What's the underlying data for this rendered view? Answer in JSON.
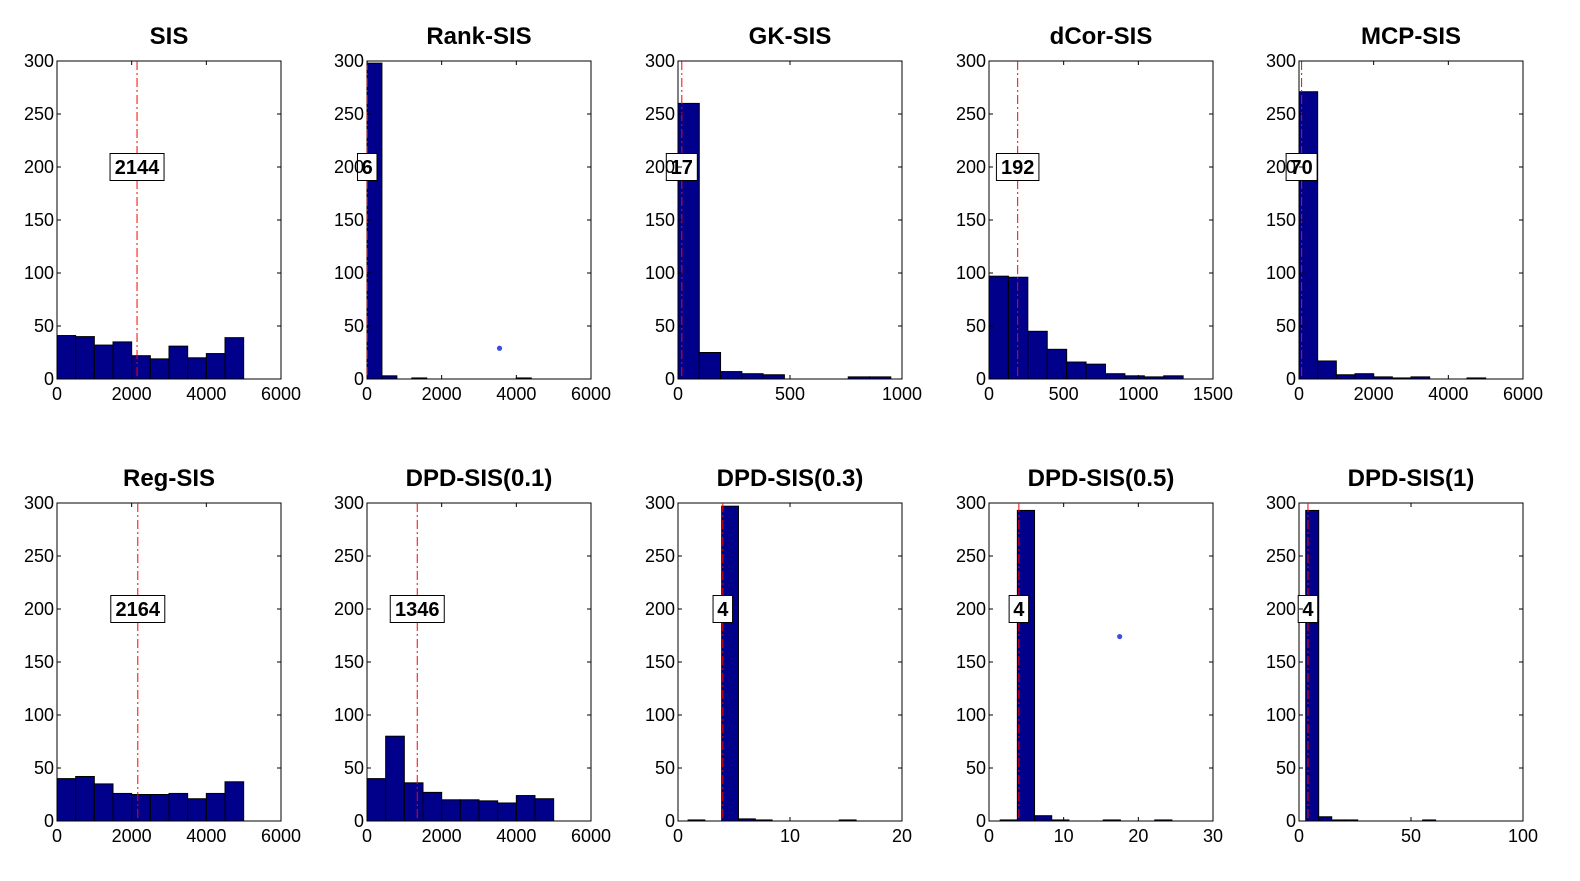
{
  "chart_data": [
    {
      "type": "bar",
      "title": "SIS",
      "xlim": [
        0,
        6000
      ],
      "ylim": [
        0,
        300
      ],
      "xticks": [
        0,
        2000,
        4000,
        6000
      ],
      "yticks": [
        0,
        50,
        100,
        150,
        200,
        250,
        300
      ],
      "bins": [
        [
          0,
          500,
          41
        ],
        [
          500,
          1000,
          40
        ],
        [
          1000,
          1500,
          32
        ],
        [
          1500,
          2000,
          35
        ],
        [
          2000,
          2500,
          22
        ],
        [
          2500,
          3000,
          19
        ],
        [
          3000,
          3500,
          31
        ],
        [
          3500,
          4000,
          20
        ],
        [
          4000,
          4500,
          24
        ],
        [
          4500,
          5000,
          39
        ]
      ],
      "median": 2144,
      "median_label": "2144",
      "label_y": 200
    },
    {
      "type": "bar",
      "title": "Rank-SIS",
      "xlim": [
        0,
        6000
      ],
      "ylim": [
        0,
        300
      ],
      "xticks": [
        0,
        2000,
        4000,
        6000
      ],
      "yticks": [
        0,
        50,
        100,
        150,
        200,
        250,
        300
      ],
      "bins": [
        [
          0,
          400,
          298
        ],
        [
          400,
          800,
          3
        ],
        [
          800,
          1200,
          0
        ],
        [
          1200,
          1600,
          1
        ],
        [
          1600,
          2000,
          0
        ],
        [
          2000,
          2400,
          0
        ],
        [
          2400,
          2800,
          0
        ],
        [
          2800,
          3200,
          0
        ],
        [
          3200,
          3600,
          0
        ],
        [
          3600,
          4000,
          0
        ],
        [
          4000,
          4400,
          1
        ]
      ],
      "median": 6,
      "median_label": "6",
      "label_y": 200,
      "points": [
        [
          3550,
          29
        ]
      ]
    },
    {
      "type": "bar",
      "title": "GK-SIS",
      "xlim": [
        0,
        1000
      ],
      "ylim": [
        0,
        300
      ],
      "xticks": [
        0,
        500,
        1000
      ],
      "yticks": [
        0,
        50,
        100,
        150,
        200,
        250,
        300
      ],
      "bins": [
        [
          0,
          95,
          260
        ],
        [
          95,
          190,
          25
        ],
        [
          190,
          285,
          7
        ],
        [
          285,
          380,
          5
        ],
        [
          380,
          475,
          4
        ],
        [
          475,
          570,
          0
        ],
        [
          570,
          665,
          0
        ],
        [
          665,
          760,
          0
        ],
        [
          760,
          855,
          2
        ],
        [
          855,
          950,
          2
        ]
      ],
      "median": 17,
      "median_label": "17",
      "label_y": 200
    },
    {
      "type": "bar",
      "title": "dCor-SIS",
      "xlim": [
        0,
        1500
      ],
      "ylim": [
        0,
        300
      ],
      "xticks": [
        0,
        500,
        1000,
        1500
      ],
      "yticks": [
        0,
        50,
        100,
        150,
        200,
        250,
        300
      ],
      "bins": [
        [
          0,
          130,
          97
        ],
        [
          130,
          260,
          96
        ],
        [
          260,
          390,
          45
        ],
        [
          390,
          520,
          28
        ],
        [
          520,
          650,
          16
        ],
        [
          650,
          780,
          14
        ],
        [
          780,
          910,
          5
        ],
        [
          910,
          1040,
          3
        ],
        [
          1040,
          1170,
          2
        ],
        [
          1170,
          1300,
          3
        ]
      ],
      "median": 192,
      "median_label": "192",
      "label_y": 200
    },
    {
      "type": "bar",
      "title": "MCP-SIS",
      "xlim": [
        0,
        6000
      ],
      "ylim": [
        0,
        300
      ],
      "xticks": [
        0,
        2000,
        4000,
        6000
      ],
      "yticks": [
        0,
        50,
        100,
        150,
        200,
        250,
        300
      ],
      "bins": [
        [
          0,
          500,
          271
        ],
        [
          500,
          1000,
          17
        ],
        [
          1000,
          1500,
          4
        ],
        [
          1500,
          2000,
          5
        ],
        [
          2000,
          2500,
          2
        ],
        [
          2500,
          3000,
          1
        ],
        [
          3000,
          3500,
          2
        ],
        [
          3500,
          4000,
          0
        ],
        [
          4000,
          4500,
          0
        ],
        [
          4500,
          5000,
          1
        ]
      ],
      "median": 70,
      "median_label": "70",
      "label_y": 200
    },
    {
      "type": "bar",
      "title": "Reg-SIS",
      "xlim": [
        0,
        6000
      ],
      "ylim": [
        0,
        300
      ],
      "xticks": [
        0,
        2000,
        4000,
        6000
      ],
      "yticks": [
        0,
        50,
        100,
        150,
        200,
        250,
        300
      ],
      "bins": [
        [
          0,
          500,
          40
        ],
        [
          500,
          1000,
          42
        ],
        [
          1000,
          1500,
          35
        ],
        [
          1500,
          2000,
          26
        ],
        [
          2000,
          2500,
          25
        ],
        [
          2500,
          3000,
          25
        ],
        [
          3000,
          3500,
          26
        ],
        [
          3500,
          4000,
          21
        ],
        [
          4000,
          4500,
          26
        ],
        [
          4500,
          5000,
          37
        ]
      ],
      "median": 2164,
      "median_label": "2164",
      "label_y": 200
    },
    {
      "type": "bar",
      "title": "DPD-SIS(0.1)",
      "xlim": [
        0,
        6000
      ],
      "ylim": [
        0,
        300
      ],
      "xticks": [
        0,
        2000,
        4000,
        6000
      ],
      "yticks": [
        0,
        50,
        100,
        150,
        200,
        250,
        300
      ],
      "bins": [
        [
          0,
          500,
          40
        ],
        [
          500,
          1000,
          80
        ],
        [
          1000,
          1500,
          36
        ],
        [
          1500,
          2000,
          27
        ],
        [
          2000,
          2500,
          20
        ],
        [
          2500,
          3000,
          20
        ],
        [
          3000,
          3500,
          19
        ],
        [
          3500,
          4000,
          17
        ],
        [
          4000,
          4500,
          24
        ],
        [
          4500,
          5000,
          21
        ]
      ],
      "median": 1346,
      "median_label": "1346",
      "label_y": 200
    },
    {
      "type": "bar",
      "title": "DPD-SIS(0.3)",
      "xlim": [
        0,
        20
      ],
      "ylim": [
        0,
        300
      ],
      "xticks": [
        0,
        10,
        20
      ],
      "yticks": [
        0,
        50,
        100,
        150,
        200,
        250,
        300
      ],
      "bins": [
        [
          0.9,
          2.4,
          1
        ],
        [
          2.4,
          3.9,
          0
        ],
        [
          3.9,
          5.4,
          297
        ],
        [
          5.4,
          6.9,
          2
        ],
        [
          6.9,
          8.4,
          1
        ],
        [
          8.4,
          9.9,
          0
        ],
        [
          9.9,
          11.4,
          0
        ],
        [
          11.4,
          12.9,
          0
        ],
        [
          12.9,
          14.4,
          0
        ],
        [
          14.4,
          15.9,
          1
        ]
      ],
      "median": 4,
      "median_label": "4",
      "label_y": 200
    },
    {
      "type": "bar",
      "title": "DPD-SIS(0.5)",
      "xlim": [
        0,
        30
      ],
      "ylim": [
        0,
        300
      ],
      "xticks": [
        0,
        10,
        20,
        30
      ],
      "yticks": [
        0,
        50,
        100,
        150,
        200,
        250,
        300
      ],
      "bins": [
        [
          1.5,
          3.8,
          1
        ],
        [
          3.8,
          6.1,
          293
        ],
        [
          6.1,
          8.4,
          5
        ],
        [
          8.4,
          10.7,
          1
        ],
        [
          10.7,
          13.0,
          0
        ],
        [
          13.0,
          15.3,
          0
        ],
        [
          15.3,
          17.6,
          1
        ],
        [
          17.6,
          19.9,
          0
        ],
        [
          19.9,
          22.2,
          0
        ],
        [
          22.2,
          24.5,
          1
        ]
      ],
      "median": 4,
      "median_label": "4",
      "label_y": 200,
      "points": [
        [
          17.5,
          174
        ]
      ]
    },
    {
      "type": "bar",
      "title": "DPD-SIS(1)",
      "xlim": [
        0,
        100
      ],
      "ylim": [
        0,
        300
      ],
      "xticks": [
        0,
        50,
        100
      ],
      "yticks": [
        0,
        50,
        100,
        150,
        200,
        250,
        300
      ],
      "bins": [
        [
          3,
          8.8,
          293
        ],
        [
          8.8,
          14.6,
          4
        ],
        [
          14.6,
          20.4,
          1
        ],
        [
          20.4,
          26.2,
          1
        ],
        [
          26.2,
          32,
          0
        ],
        [
          32,
          37.8,
          0
        ],
        [
          37.8,
          43.6,
          0
        ],
        [
          43.6,
          49.4,
          0
        ],
        [
          49.4,
          55.2,
          0
        ],
        [
          55.2,
          61,
          1
        ]
      ],
      "median": 4,
      "median_label": "4",
      "label_y": 200
    }
  ]
}
